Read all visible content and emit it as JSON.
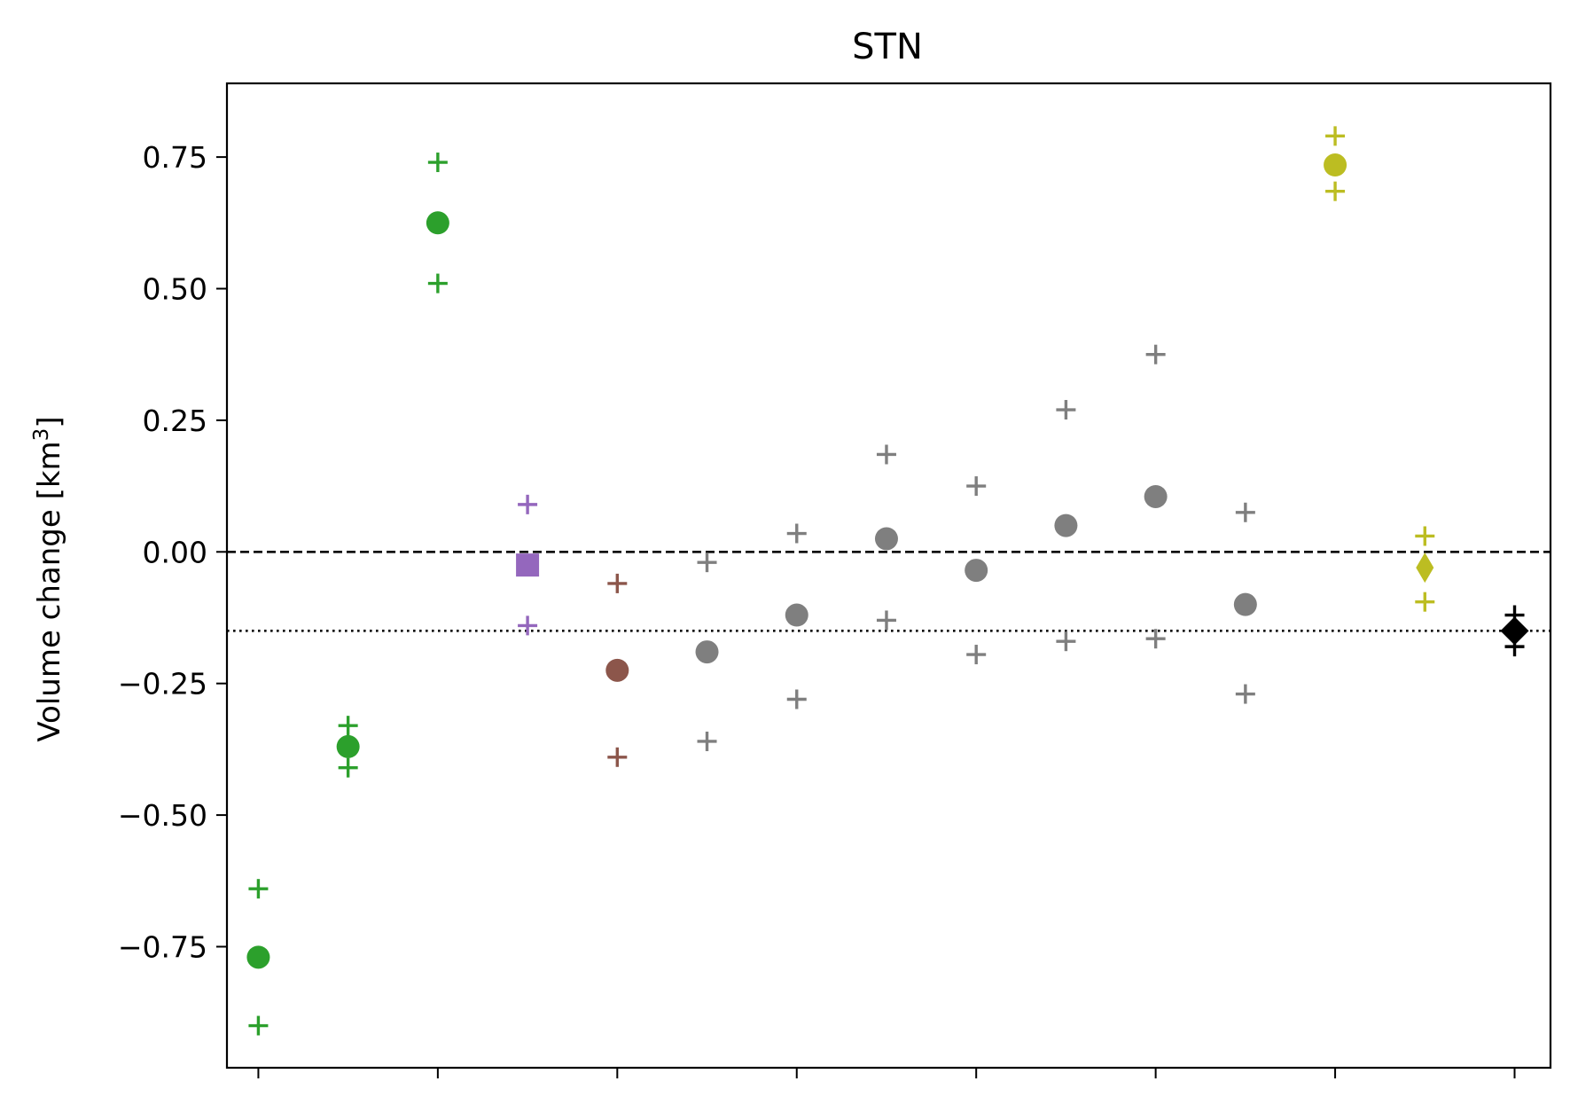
{
  "chart_data": {
    "type": "scatter",
    "title": "STN",
    "ylabel_main": "Volume change [km",
    "ylabel_sup": "3",
    "ylabel_end": "]",
    "xlabel": "",
    "ylim": [
      -0.98,
      0.89
    ],
    "xlim": [
      -0.35,
      14.4
    ],
    "yticks": [
      {
        "value": -0.75,
        "label": "−0.75"
      },
      {
        "value": -0.5,
        "label": "−0.50"
      },
      {
        "value": -0.25,
        "label": "−0.25"
      },
      {
        "value": 0.0,
        "label": "0.00"
      },
      {
        "value": 0.25,
        "label": "0.25"
      },
      {
        "value": 0.5,
        "label": "0.50"
      },
      {
        "value": 0.75,
        "label": "0.75"
      }
    ],
    "xticks": [
      0,
      2,
      4,
      6,
      8,
      10,
      12,
      14
    ],
    "x_ticklabels_shown": false,
    "reference_lines": [
      {
        "y": 0.0,
        "style": "dashed",
        "color": "#000000"
      },
      {
        "y": -0.15,
        "style": "dotted",
        "color": "#000000"
      }
    ],
    "points": [
      {
        "x": 0,
        "y": -0.77,
        "low": -0.9,
        "high": -0.64,
        "marker": "circle",
        "color": "#2ca02c"
      },
      {
        "x": 1,
        "y": -0.37,
        "low": -0.41,
        "high": -0.33,
        "marker": "circle",
        "color": "#2ca02c"
      },
      {
        "x": 2,
        "y": 0.625,
        "low": 0.51,
        "high": 0.74,
        "marker": "circle",
        "color": "#2ca02c"
      },
      {
        "x": 3,
        "y": -0.025,
        "low": -0.14,
        "high": 0.09,
        "marker": "square",
        "color": "#9467bd"
      },
      {
        "x": 4,
        "y": -0.225,
        "low": -0.39,
        "high": -0.06,
        "marker": "circle",
        "color": "#8c564b"
      },
      {
        "x": 5,
        "y": -0.19,
        "low": -0.36,
        "high": -0.02,
        "marker": "circle",
        "color": "#7f7f7f"
      },
      {
        "x": 6,
        "y": -0.12,
        "low": -0.28,
        "high": 0.035,
        "marker": "circle",
        "color": "#7f7f7f"
      },
      {
        "x": 7,
        "y": 0.025,
        "low": -0.13,
        "high": 0.185,
        "marker": "circle",
        "color": "#7f7f7f"
      },
      {
        "x": 8,
        "y": -0.035,
        "low": -0.195,
        "high": 0.125,
        "marker": "circle",
        "color": "#7f7f7f"
      },
      {
        "x": 9,
        "y": 0.05,
        "low": -0.17,
        "high": 0.27,
        "marker": "circle",
        "color": "#7f7f7f"
      },
      {
        "x": 10,
        "y": 0.105,
        "low": -0.165,
        "high": 0.375,
        "marker": "circle",
        "color": "#7f7f7f"
      },
      {
        "x": 11,
        "y": -0.1,
        "low": -0.27,
        "high": 0.075,
        "marker": "circle",
        "color": "#7f7f7f"
      },
      {
        "x": 12,
        "y": 0.735,
        "low": 0.685,
        "high": 0.79,
        "marker": "circle",
        "color": "#bcbd22"
      },
      {
        "x": 13,
        "y": -0.03,
        "low": -0.095,
        "high": 0.03,
        "marker": "thin_diamond",
        "color": "#bcbd22"
      },
      {
        "x": 14,
        "y": -0.15,
        "low": -0.18,
        "high": -0.12,
        "marker": "diamond",
        "color": "#000000"
      }
    ]
  }
}
